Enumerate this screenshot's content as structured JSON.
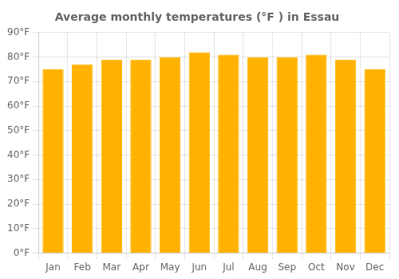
{
  "chart_data": {
    "type": "bar",
    "title": "Average monthly temperatures (°F ) in Essau",
    "categories": [
      "Jan",
      "Feb",
      "Mar",
      "Apr",
      "May",
      "Jun",
      "Jul",
      "Aug",
      "Sep",
      "Oct",
      "Nov",
      "Dec"
    ],
    "values": [
      75,
      77,
      79,
      79,
      80,
      82,
      81,
      80,
      80,
      81,
      79,
      75
    ],
    "color": "#FFB300",
    "ylim": [
      0,
      90
    ],
    "yticks": [
      {
        "value": 0,
        "label": "0°F"
      },
      {
        "value": 10,
        "label": "10°F"
      },
      {
        "value": 20,
        "label": "20°F"
      },
      {
        "value": 30,
        "label": "30°F"
      },
      {
        "value": 40,
        "label": "40°F"
      },
      {
        "value": 50,
        "label": "50°F"
      },
      {
        "value": 60,
        "label": "60°F"
      },
      {
        "value": 70,
        "label": "70°F"
      },
      {
        "value": 80,
        "label": "80°F"
      },
      {
        "value": 90,
        "label": "90°F"
      }
    ],
    "grid": true
  }
}
